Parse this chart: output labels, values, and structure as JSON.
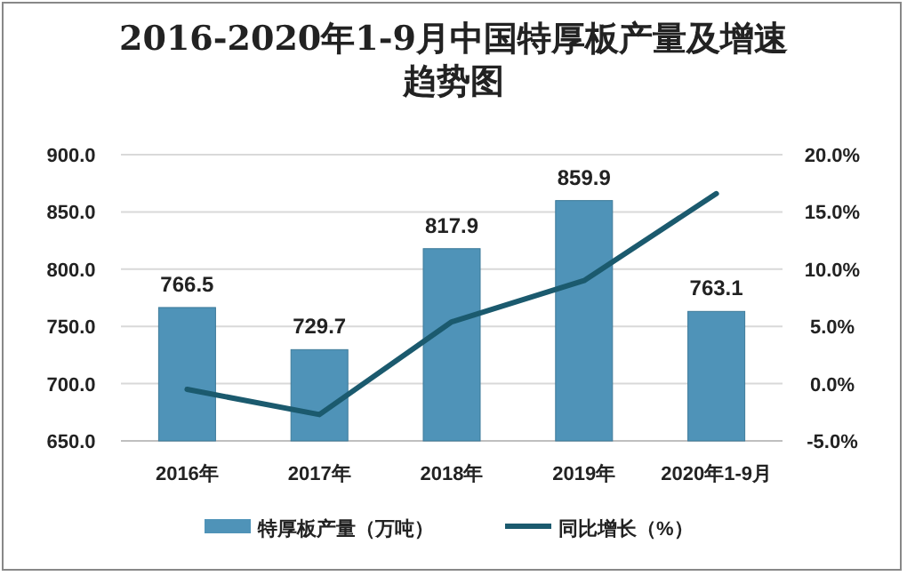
{
  "chart_data": {
    "type": "bar",
    "title": "2016-2020年1-9月中国特厚板产量及增速趋势图",
    "categories": [
      "2016年",
      "2017年",
      "2018年",
      "2019年",
      "2020年1-9月"
    ],
    "series": [
      {
        "name": "特厚板产量（万吨）",
        "color": "#4f93b8",
        "values": [
          766.5,
          729.7,
          817.9,
          859.9,
          763.1
        ],
        "value_labels": [
          "766.5",
          "729.7",
          "817.9",
          "859.9",
          "763.1"
        ]
      },
      {
        "name": "同比增长（%）",
        "type": "line",
        "axis": "y2",
        "color": "#1b5a6e",
        "values": [
          -0.5,
          -2.7,
          5.4,
          9.0,
          16.6
        ]
      }
    ],
    "ylim": [
      650,
      900
    ],
    "yticks": [
      {
        "value": 650,
        "label": "650.0"
      },
      {
        "value": 700,
        "label": "700.0"
      },
      {
        "value": 750,
        "label": "750.0"
      },
      {
        "value": 800,
        "label": "800.0"
      },
      {
        "value": 850,
        "label": "850.0"
      },
      {
        "value": 900,
        "label": "900.0"
      }
    ],
    "y2lim": [
      -5,
      20
    ],
    "y2ticks": [
      {
        "value": -5,
        "label": "-5.0%"
      },
      {
        "value": 0,
        "label": "0.0%"
      },
      {
        "value": 5,
        "label": "5.0%"
      },
      {
        "value": 10,
        "label": "10.0%"
      },
      {
        "value": 15,
        "label": "15.0%"
      },
      {
        "value": 20,
        "label": "20.0%"
      }
    ],
    "grid": "y",
    "legend": "bottom"
  }
}
